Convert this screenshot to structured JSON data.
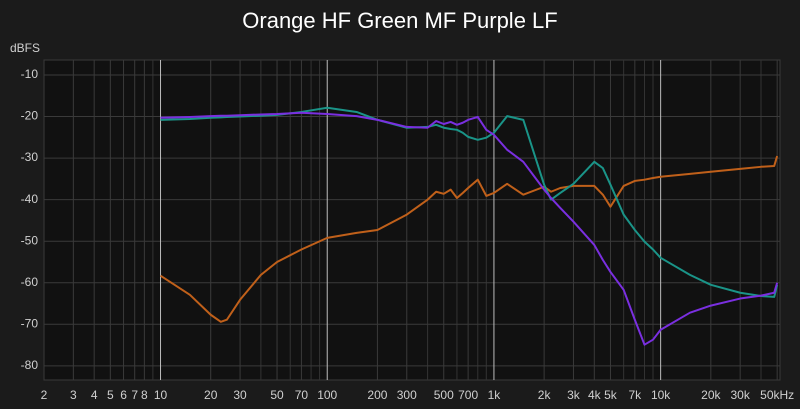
{
  "chart_data": {
    "type": "line",
    "title": "Orange HF Green MF Purple LF",
    "y_label": "dBFS",
    "x_log": true,
    "grid": true,
    "xlim": [
      2,
      52000
    ],
    "ylim": [
      -83.4,
      -6.4
    ],
    "xticks": [
      2,
      3,
      4,
      5,
      6,
      7,
      8,
      10,
      20,
      30,
      50,
      70,
      100,
      200,
      300,
      500,
      700,
      {
        "value": 1000,
        "label": "1k"
      },
      {
        "value": 2000,
        "label": "2k"
      },
      {
        "value": 3000,
        "label": "3k"
      },
      {
        "value": 4000,
        "label": "4k"
      },
      {
        "value": 5000,
        "label": "5k"
      },
      {
        "value": 7000,
        "label": "7k"
      },
      {
        "value": 10000,
        "label": "10k"
      },
      {
        "value": 20000,
        "label": "20k"
      },
      {
        "value": 30000,
        "label": "30k"
      },
      {
        "value": 50000,
        "label": "50kHz"
      }
    ],
    "xminor": [
      9,
      40,
      60,
      80,
      90,
      400,
      600,
      800,
      900,
      6000,
      8000,
      9000,
      40000
    ],
    "yticks": [
      -10,
      -20,
      -30,
      -40,
      -50,
      -60,
      -70,
      -80
    ],
    "x": [
      10,
      15,
      20,
      23,
      25,
      30,
      40,
      50,
      70,
      100,
      150,
      200,
      300,
      400,
      450,
      500,
      550,
      600,
      650,
      700,
      800,
      900,
      1000,
      1200,
      1500,
      2000,
      2200,
      2500,
      3000,
      4000,
      4500,
      5000,
      6000,
      7000,
      8000,
      9000,
      10000,
      15000,
      20000,
      30000,
      40000,
      48000,
      50000
    ],
    "series": [
      {
        "color": "#c0601a",
        "values": [
          -58.3,
          -62.9,
          -67.7,
          -69.4,
          -68.9,
          -64.1,
          -58.1,
          -55,
          -52,
          -49.2,
          -48,
          -47.3,
          -43.6,
          -40,
          -38.1,
          -38.6,
          -37.6,
          -39.6,
          -38.4,
          -37.2,
          -35.2,
          -39.1,
          -38.4,
          -36.2,
          -38.8,
          -36.9,
          -38.1,
          -37.2,
          -36.7,
          -36.7,
          -38.8,
          -41.7,
          -36.7,
          -35.5,
          -35.2,
          -34.8,
          -34.5,
          -33.8,
          -33.3,
          -32.6,
          -32.1,
          -31.9,
          -29.5
        ]
      },
      {
        "color": "#1a9488",
        "values": [
          -20.8,
          -20.6,
          -20.3,
          -20.2,
          -20.1,
          -20,
          -19.8,
          -19.6,
          -18.9,
          -17.9,
          -18.9,
          -20.8,
          -22.7,
          -22.5,
          -22,
          -22.7,
          -23,
          -23.2,
          -23.9,
          -24.9,
          -25.6,
          -25.1,
          -23.9,
          -19.9,
          -20.8,
          -36.4,
          -40,
          -38.4,
          -36.2,
          -30.9,
          -32.4,
          -36.4,
          -43.6,
          -47.3,
          -50.1,
          -52,
          -54,
          -58.1,
          -60.5,
          -62.4,
          -63.2,
          -63.4,
          -60.5
        ]
      },
      {
        "color": "#7a2fe0",
        "values": [
          -20.3,
          -20.1,
          -19.9,
          -19.8,
          -19.8,
          -19.7,
          -19.5,
          -19.4,
          -19.1,
          -19.4,
          -19.9,
          -20.8,
          -22.5,
          -22.7,
          -21.1,
          -21.8,
          -21.3,
          -22,
          -21.5,
          -20.8,
          -20.1,
          -23.2,
          -24.4,
          -28,
          -30.9,
          -37.6,
          -39.6,
          -42,
          -45.3,
          -50.9,
          -54.5,
          -57.4,
          -61.7,
          -68.9,
          -74.9,
          -73.7,
          -71.3,
          -67.2,
          -65.5,
          -63.8,
          -63.1,
          -62.4,
          -60
        ]
      }
    ]
  }
}
